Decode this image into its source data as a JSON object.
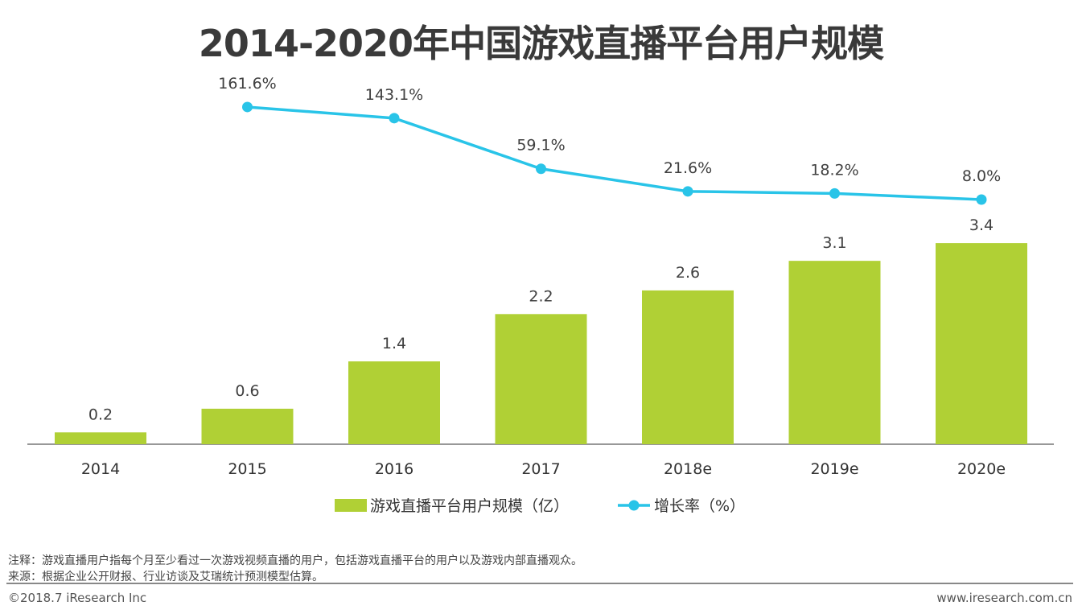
{
  "chart_data": {
    "type": "bar+line",
    "title": "2014-2020年中国游戏直播平台用户规模",
    "categories": [
      "2014",
      "2015",
      "2016",
      "2017",
      "2018e",
      "2019e",
      "2020e"
    ],
    "series": [
      {
        "name": "游戏直播平台用户规模（亿）",
        "type": "bar",
        "color": "#b0d035",
        "values": [
          0.2,
          0.6,
          1.4,
          2.2,
          2.6,
          3.1,
          3.4
        ],
        "labels": [
          "0.2",
          "0.6",
          "1.4",
          "2.2",
          "2.6",
          "3.1",
          "3.4"
        ]
      },
      {
        "name": "增长率（%）",
        "type": "line",
        "color": "#29c4e8",
        "values": [
          null,
          161.6,
          143.1,
          59.1,
          21.6,
          18.2,
          8.0
        ],
        "labels": [
          "",
          "161.6%",
          "143.1%",
          "59.1%",
          "21.6%",
          "18.2%",
          "8.0%"
        ]
      }
    ],
    "legend": "bottom",
    "grid": false
  },
  "footer": {
    "note": "注释：游戏直播用户指每个月至少看过一次游戏视频直播的用户，包括游戏直播平台的用户以及游戏内部直播观众。",
    "source": "来源：根据企业公开财报、行业访谈及艾瑞统计预测模型估算。",
    "copyright": "©2018.7 iResearch Inc",
    "website": "www.iresearch.com.cn"
  }
}
